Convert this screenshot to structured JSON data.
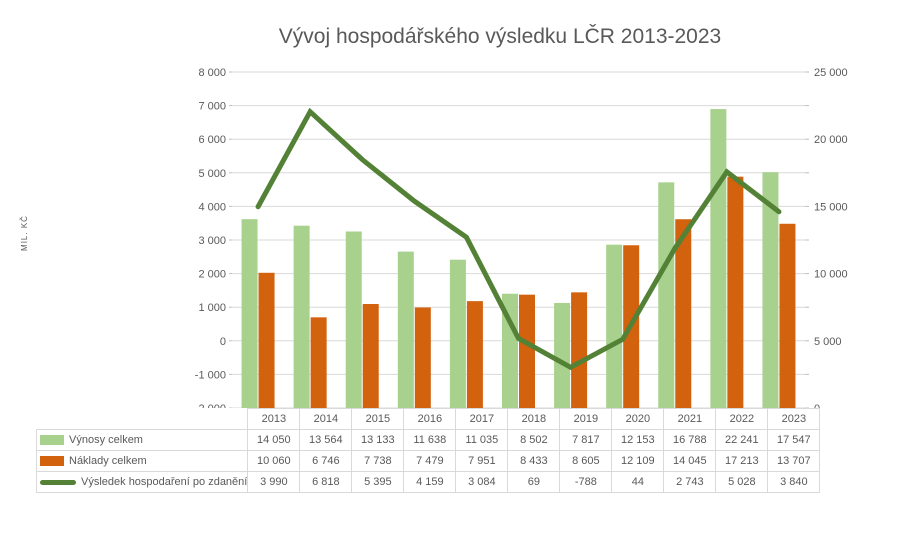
{
  "title": "Vývoj hospodářského výsledku LČR 2013-2023",
  "y_axis_label": "MIL. KČ",
  "colors": {
    "grid": "#d9d9d9",
    "tick": "#bfbfbf",
    "text": "#595959",
    "table_border": "#d9d9d9"
  },
  "chart_data": {
    "type": "bar",
    "subtype": "grouped-bars-with-line-overlay",
    "title": "Vývoj hospodářského výsledku LČR 2013-2023",
    "xlabel": "",
    "ylabel": "MIL. KČ",
    "categories": [
      "2013",
      "2014",
      "2015",
      "2016",
      "2017",
      "2018",
      "2019",
      "2020",
      "2021",
      "2022",
      "2023"
    ],
    "series": [
      {
        "name": "Výnosy celkem",
        "type": "bar",
        "axis": "right",
        "color": "#a9d18e",
        "values": [
          14050,
          13564,
          13133,
          11638,
          11035,
          8502,
          7817,
          12153,
          16788,
          22241,
          17547
        ]
      },
      {
        "name": "Náklady celkem",
        "type": "bar",
        "axis": "right",
        "color": "#d2620e",
        "values": [
          10060,
          6746,
          7738,
          7479,
          7951,
          8433,
          8605,
          12109,
          14045,
          17213,
          13707
        ]
      },
      {
        "name": "Výsledek hospodaření po zdanění",
        "type": "line",
        "axis": "left",
        "color": "#538135",
        "values": [
          3990,
          6818,
          5395,
          4159,
          3084,
          69,
          -788,
          44,
          2743,
          5028,
          3840
        ]
      }
    ],
    "left_axis": {
      "min": -2000,
      "max": 8000,
      "step": 1000,
      "label_step": 1000
    },
    "right_axis": {
      "min": 0,
      "max": 25000,
      "step": 2500,
      "label_step": 5000
    },
    "grid": true,
    "legend_position": "data-table-below-chart"
  }
}
